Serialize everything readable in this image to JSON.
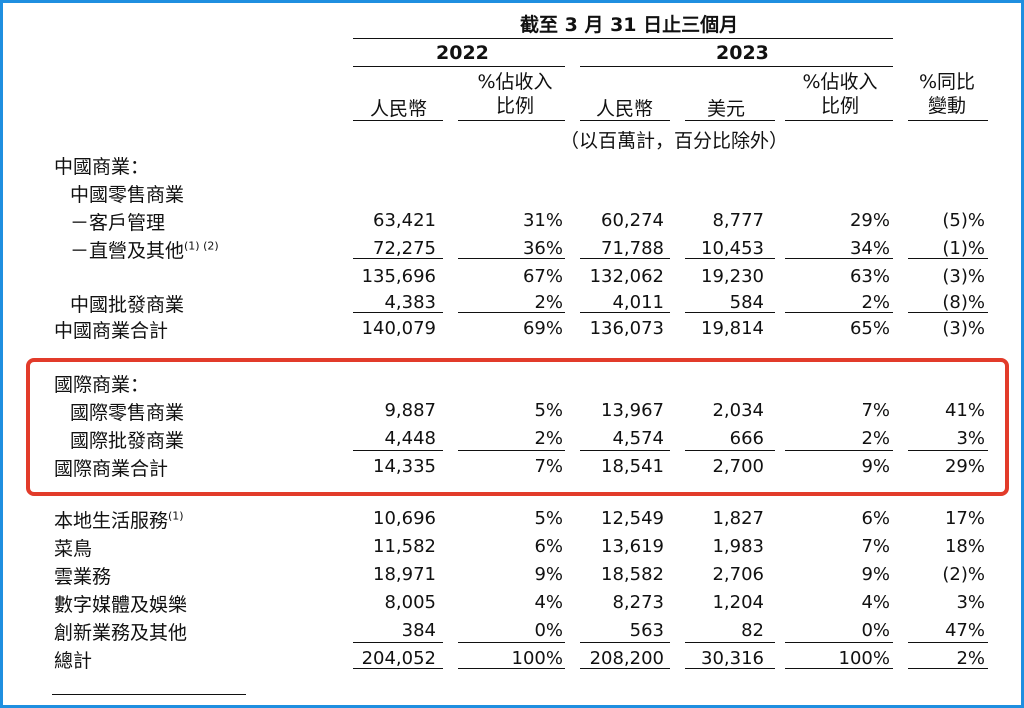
{
  "header": {
    "period": "截至 3 月 31 日止三個月",
    "year_2022": "2022",
    "year_2023": "2023",
    "col_rmb_2022": "人民幣",
    "col_pct_2022": "%佔收入\n比例",
    "col_rmb_2023": "人民幣",
    "col_usd_2023": "美元",
    "col_pct_2023": "%佔收入\n比例",
    "col_yoy": "%同比\n變動",
    "unit_note": "（以百萬計，百分比除外）"
  },
  "rows": [
    {
      "label": "中國商業：",
      "indent": 0,
      "values": [
        "",
        "",
        "",
        "",
        "",
        ""
      ]
    },
    {
      "label": "中國零售商業",
      "indent": 1,
      "values": [
        "",
        "",
        "",
        "",
        "",
        ""
      ]
    },
    {
      "label": "－客戶管理",
      "indent": 1,
      "values": [
        "63,421",
        "31%",
        "60,274",
        "8,777",
        "29%",
        "(5)%"
      ]
    },
    {
      "label": "－直營及其他",
      "sup": "(1) (2)",
      "indent": 1,
      "values": [
        "72,275",
        "36%",
        "71,788",
        "10,453",
        "34%",
        "(1)%"
      ]
    },
    {
      "label": "",
      "indent": 1,
      "values": [
        "135,696",
        "67%",
        "132,062",
        "19,230",
        "63%",
        "(3)%"
      ]
    },
    {
      "label": "中國批發商業",
      "indent": 1,
      "values": [
        "4,383",
        "2%",
        "4,011",
        "584",
        "2%",
        "(8)%"
      ]
    },
    {
      "label": "中國商業合計",
      "indent": 0,
      "values": [
        "140,079",
        "69%",
        "136,073",
        "19,814",
        "65%",
        "(3)%"
      ]
    },
    {
      "label": "國際商業：",
      "indent": 0,
      "values": [
        "",
        "",
        "",
        "",
        "",
        ""
      ]
    },
    {
      "label": "國際零售商業",
      "indent": 1,
      "values": [
        "9,887",
        "5%",
        "13,967",
        "2,034",
        "7%",
        "41%"
      ]
    },
    {
      "label": "國際批發商業",
      "indent": 1,
      "values": [
        "4,448",
        "2%",
        "4,574",
        "666",
        "2%",
        "3%"
      ]
    },
    {
      "label": "國際商業合計",
      "indent": 0,
      "values": [
        "14,335",
        "7%",
        "18,541",
        "2,700",
        "9%",
        "29%"
      ]
    },
    {
      "label": "本地生活服務",
      "sup": "(1)",
      "indent": 0,
      "values": [
        "10,696",
        "5%",
        "12,549",
        "1,827",
        "6%",
        "17%"
      ]
    },
    {
      "label": "菜鳥",
      "indent": 0,
      "values": [
        "11,582",
        "6%",
        "13,619",
        "1,983",
        "7%",
        "18%"
      ]
    },
    {
      "label": "雲業務",
      "indent": 0,
      "values": [
        "18,971",
        "9%",
        "18,582",
        "2,706",
        "9%",
        "(2)%"
      ]
    },
    {
      "label": "數字媒體及娛樂",
      "indent": 0,
      "values": [
        "8,005",
        "4%",
        "8,273",
        "1,204",
        "4%",
        "3%"
      ]
    },
    {
      "label": "創新業務及其他",
      "indent": 0,
      "values": [
        "384",
        "0%",
        "563",
        "82",
        "0%",
        "47%"
      ]
    },
    {
      "label": "總計",
      "indent": 0,
      "values": [
        "204,052",
        "100%",
        "208,200",
        "30,316",
        "100%",
        "2%"
      ]
    }
  ],
  "colors": {
    "highlight": "#e23b2a",
    "frame": "#1f8fe0"
  }
}
